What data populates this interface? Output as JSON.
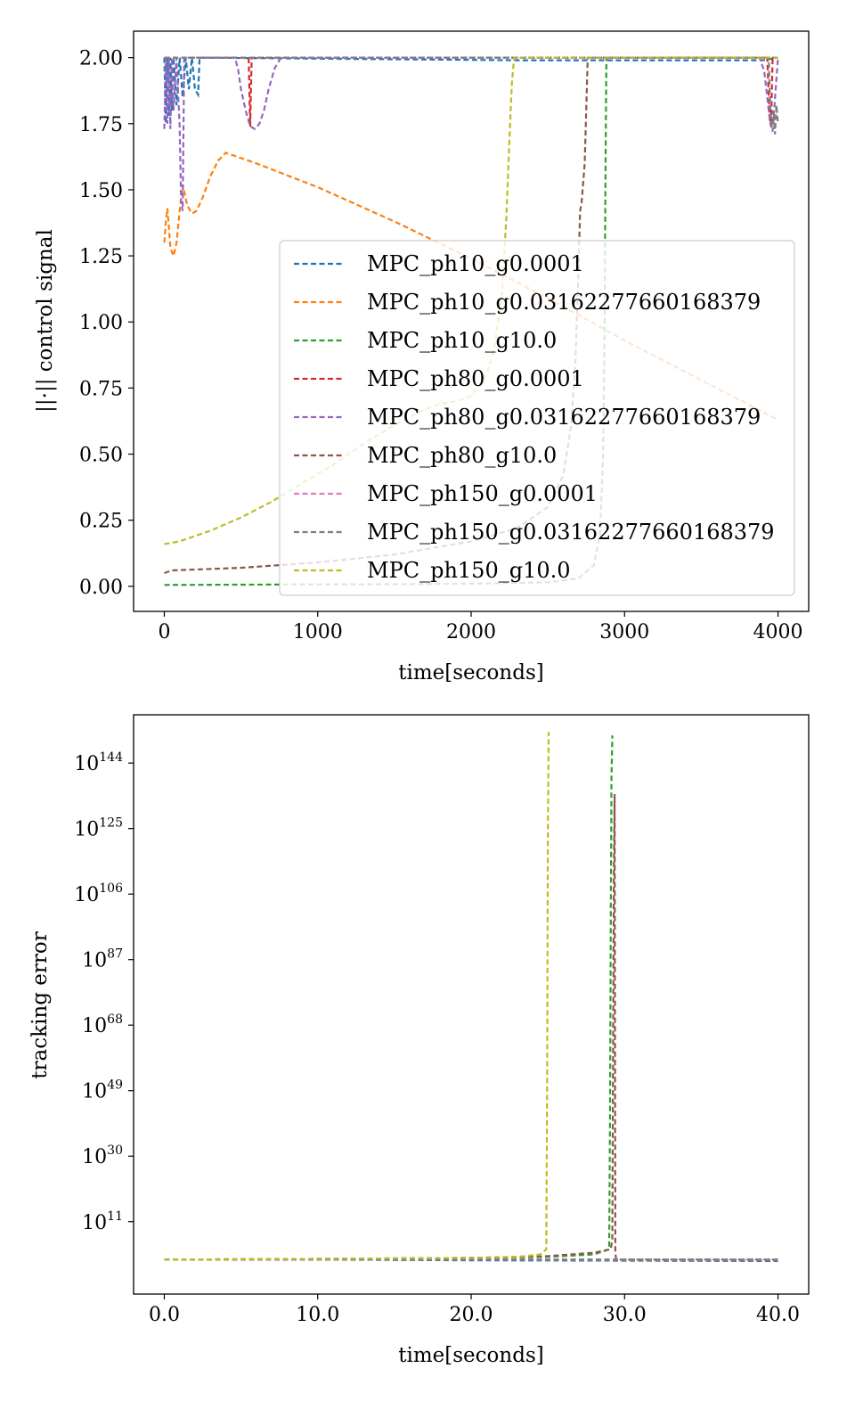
{
  "series_colors": [
    "#1f77b4",
    "#ff7f0e",
    "#2ca02c",
    "#d62728",
    "#9467bd",
    "#8c564b",
    "#e377c2",
    "#7f7f7f",
    "#bcbd22"
  ],
  "chart_data": [
    {
      "type": "line",
      "xlabel": "time[seconds]",
      "ylabel": "||·|| control signal",
      "xlim": [
        -200,
        4200
      ],
      "ylim": [
        -0.095,
        2.1
      ],
      "xticks": [
        0,
        1000,
        2000,
        3000,
        4000
      ],
      "xtick_labels": [
        "0",
        "1000",
        "2000",
        "3000",
        "4000"
      ],
      "yticks": [
        0,
        0.25,
        0.5,
        0.75,
        1.0,
        1.25,
        1.5,
        1.75,
        2.0
      ],
      "ytick_labels": [
        "0.00",
        "0.25",
        "0.50",
        "0.75",
        "1.00",
        "1.25",
        "1.50",
        "1.75",
        "2.00"
      ],
      "grid": false,
      "legend": "lower-right",
      "series": [
        {
          "name": "MPC_ph10_g0.0001",
          "x": [
            0,
            10,
            20,
            30,
            40,
            50,
            60,
            80,
            100,
            120,
            140,
            160,
            180,
            200,
            220,
            230,
            2300,
            3900,
            4000
          ],
          "y": [
            2.0,
            1.75,
            2.0,
            1.78,
            2.0,
            1.8,
            2.0,
            1.82,
            2.0,
            1.85,
            2.0,
            1.88,
            2.0,
            1.88,
            1.86,
            2.0,
            1.99,
            1.99,
            2.0
          ]
        },
        {
          "name": "MPC_ph10_g0.03162277660168379",
          "x": [
            0,
            10,
            20,
            30,
            40,
            60,
            80,
            100,
            120,
            150,
            180,
            210,
            250,
            300,
            350,
            400,
            600,
            1000,
            1500,
            2000,
            2500,
            3000,
            3500,
            4000
          ],
          "y": [
            1.3,
            1.38,
            1.43,
            1.36,
            1.28,
            1.25,
            1.3,
            1.42,
            1.52,
            1.44,
            1.41,
            1.42,
            1.47,
            1.55,
            1.61,
            1.64,
            1.6,
            1.51,
            1.38,
            1.24,
            1.09,
            0.93,
            0.78,
            0.63
          ]
        },
        {
          "name": "MPC_ph10_g10.0",
          "x": [
            0,
            500,
            1000,
            1500,
            2000,
            2500,
            2700,
            2800,
            2840,
            2860,
            2870,
            2875,
            2880,
            2882,
            2885,
            3000,
            4000
          ],
          "y": [
            0.005,
            0.006,
            0.007,
            0.008,
            0.01,
            0.015,
            0.03,
            0.08,
            0.2,
            0.5,
            1.0,
            1.5,
            1.9,
            2.0,
            2.0,
            2.0,
            2.0
          ]
        },
        {
          "name": "MPC_ph80_g0.0001",
          "x": [
            0,
            500,
            550,
            560,
            570,
            580,
            3900,
            3930,
            3945,
            3955,
            3965,
            4000
          ],
          "y": [
            2.0,
            2.0,
            2.0,
            1.74,
            2.0,
            2.0,
            2.0,
            2.0,
            1.77,
            1.75,
            2.0,
            2.0
          ]
        },
        {
          "name": "MPC_ph80_g0.03162277660168379",
          "x": [
            0,
            10,
            20,
            30,
            40,
            50,
            60,
            80,
            100,
            110,
            120,
            130,
            460,
            480,
            500,
            530,
            560,
            590,
            620,
            650,
            680,
            720,
            760,
            3880,
            3910,
            3930,
            3950,
            3965,
            4000
          ],
          "y": [
            1.73,
            2.0,
            1.75,
            2.0,
            1.73,
            2.0,
            1.8,
            2.0,
            1.74,
            1.45,
            1.42,
            2.0,
            2.0,
            1.96,
            1.88,
            1.8,
            1.74,
            1.73,
            1.75,
            1.8,
            1.88,
            1.96,
            2.0,
            2.0,
            1.95,
            1.85,
            1.75,
            1.72,
            2.0
          ]
        },
        {
          "name": "MPC_ph80_g10.0",
          "x": [
            0,
            50,
            500,
            1000,
            1500,
            2000,
            2300,
            2500,
            2600,
            2650,
            2680,
            2700,
            2710,
            2720,
            2740,
            2760,
            2780,
            3000,
            4000
          ],
          "y": [
            0.05,
            0.06,
            0.07,
            0.09,
            0.12,
            0.17,
            0.22,
            0.3,
            0.42,
            0.6,
            0.85,
            1.2,
            1.42,
            1.45,
            1.6,
            2.0,
            2.0,
            2.0,
            2.0
          ]
        },
        {
          "name": "MPC_ph150_g0.0001",
          "x": [
            0,
            1000,
            2000,
            3000,
            4000
          ],
          "y": [
            2.0,
            2.0,
            2.0,
            2.0,
            2.0
          ]
        },
        {
          "name": "MPC_ph150_g0.03162277660168379",
          "x": [
            0,
            1000,
            2000,
            3000,
            3940,
            3950,
            3960,
            3970,
            3980,
            3990,
            4000
          ],
          "y": [
            2.0,
            2.0,
            2.0,
            2.0,
            2.0,
            1.8,
            1.74,
            1.8,
            1.71,
            1.82,
            1.75
          ]
        },
        {
          "name": "MPC_ph150_g10.0",
          "x": [
            0,
            100,
            300,
            500,
            700,
            900,
            1100,
            1300,
            1500,
            1700,
            1800,
            1900,
            2000,
            2100,
            2150,
            2200,
            2230,
            2250,
            2265,
            2280,
            3000,
            4000
          ],
          "y": [
            0.16,
            0.17,
            0.21,
            0.26,
            0.32,
            0.39,
            0.46,
            0.54,
            0.61,
            0.67,
            0.69,
            0.7,
            0.72,
            0.8,
            0.9,
            1.1,
            1.4,
            1.7,
            1.9,
            2.0,
            2.0,
            2.0
          ]
        }
      ]
    },
    {
      "type": "line",
      "xlabel": "time[seconds]",
      "ylabel": "tracking error",
      "yscale": "log",
      "xlim": [
        -2,
        42
      ],
      "ylim_log10": [
        -10,
        158
      ],
      "xticks": [
        0,
        10,
        20,
        30,
        40
      ],
      "xtick_labels": [
        "0.0",
        "10.0",
        "20.0",
        "30.0",
        "40.0"
      ],
      "ytick_exponents": [
        11,
        30,
        49,
        68,
        87,
        106,
        125,
        144
      ],
      "ytick_base": "10",
      "grid": false,
      "series": [
        {
          "name": "MPC_ph10_g0.0001",
          "x": [
            0,
            10,
            20,
            30,
            40
          ],
          "log10_y": [
            0,
            0,
            -0.2,
            -0.3,
            -0.4
          ]
        },
        {
          "name": "MPC_ph10_g0.03162277660168379",
          "x": [
            0,
            10,
            20,
            30,
            40
          ],
          "log10_y": [
            0,
            0,
            0,
            -0.1,
            -0.1
          ]
        },
        {
          "name": "MPC_ph10_g10.0",
          "x": [
            0,
            10,
            20,
            25,
            28,
            29,
            29.05,
            29.1,
            29.15,
            29.2
          ],
          "log10_y": [
            0,
            0.2,
            0.5,
            0.8,
            1.5,
            3,
            40,
            100,
            140,
            152
          ]
        },
        {
          "name": "MPC_ph80_g0.0001",
          "x": [
            0,
            10,
            20,
            30,
            40
          ],
          "log10_y": [
            0,
            0,
            0,
            0,
            0
          ]
        },
        {
          "name": "MPC_ph80_g0.03162277660168379",
          "x": [
            0,
            10,
            20,
            30,
            40
          ],
          "log10_y": [
            0,
            0,
            0,
            0,
            0
          ]
        },
        {
          "name": "MPC_ph80_g10.0",
          "x": [
            0,
            10,
            20,
            25,
            28,
            29.1,
            29.2,
            29.25,
            29.3,
            29.35,
            29.4,
            29.45,
            30,
            35,
            40
          ],
          "log10_y": [
            0,
            0.2,
            0.5,
            1.0,
            2.0,
            3.0,
            6,
            60,
            110,
            135,
            2,
            0,
            0,
            0,
            0
          ]
        },
        {
          "name": "MPC_ph150_g0.0001",
          "x": [
            0,
            10,
            20,
            30,
            40
          ],
          "log10_y": [
            0,
            0,
            0,
            0,
            0
          ]
        },
        {
          "name": "MPC_ph150_g0.03162277660168379",
          "x": [
            0,
            10,
            20,
            30,
            40
          ],
          "log10_y": [
            0,
            0,
            0,
            0,
            0
          ]
        },
        {
          "name": "MPC_ph150_g10.0",
          "x": [
            0,
            10,
            20,
            23,
            24.5,
            24.9,
            24.95,
            25.0,
            25.05
          ],
          "log10_y": [
            0,
            0.2,
            0.5,
            0.8,
            1.5,
            3,
            50,
            120,
            153
          ]
        }
      ]
    }
  ]
}
